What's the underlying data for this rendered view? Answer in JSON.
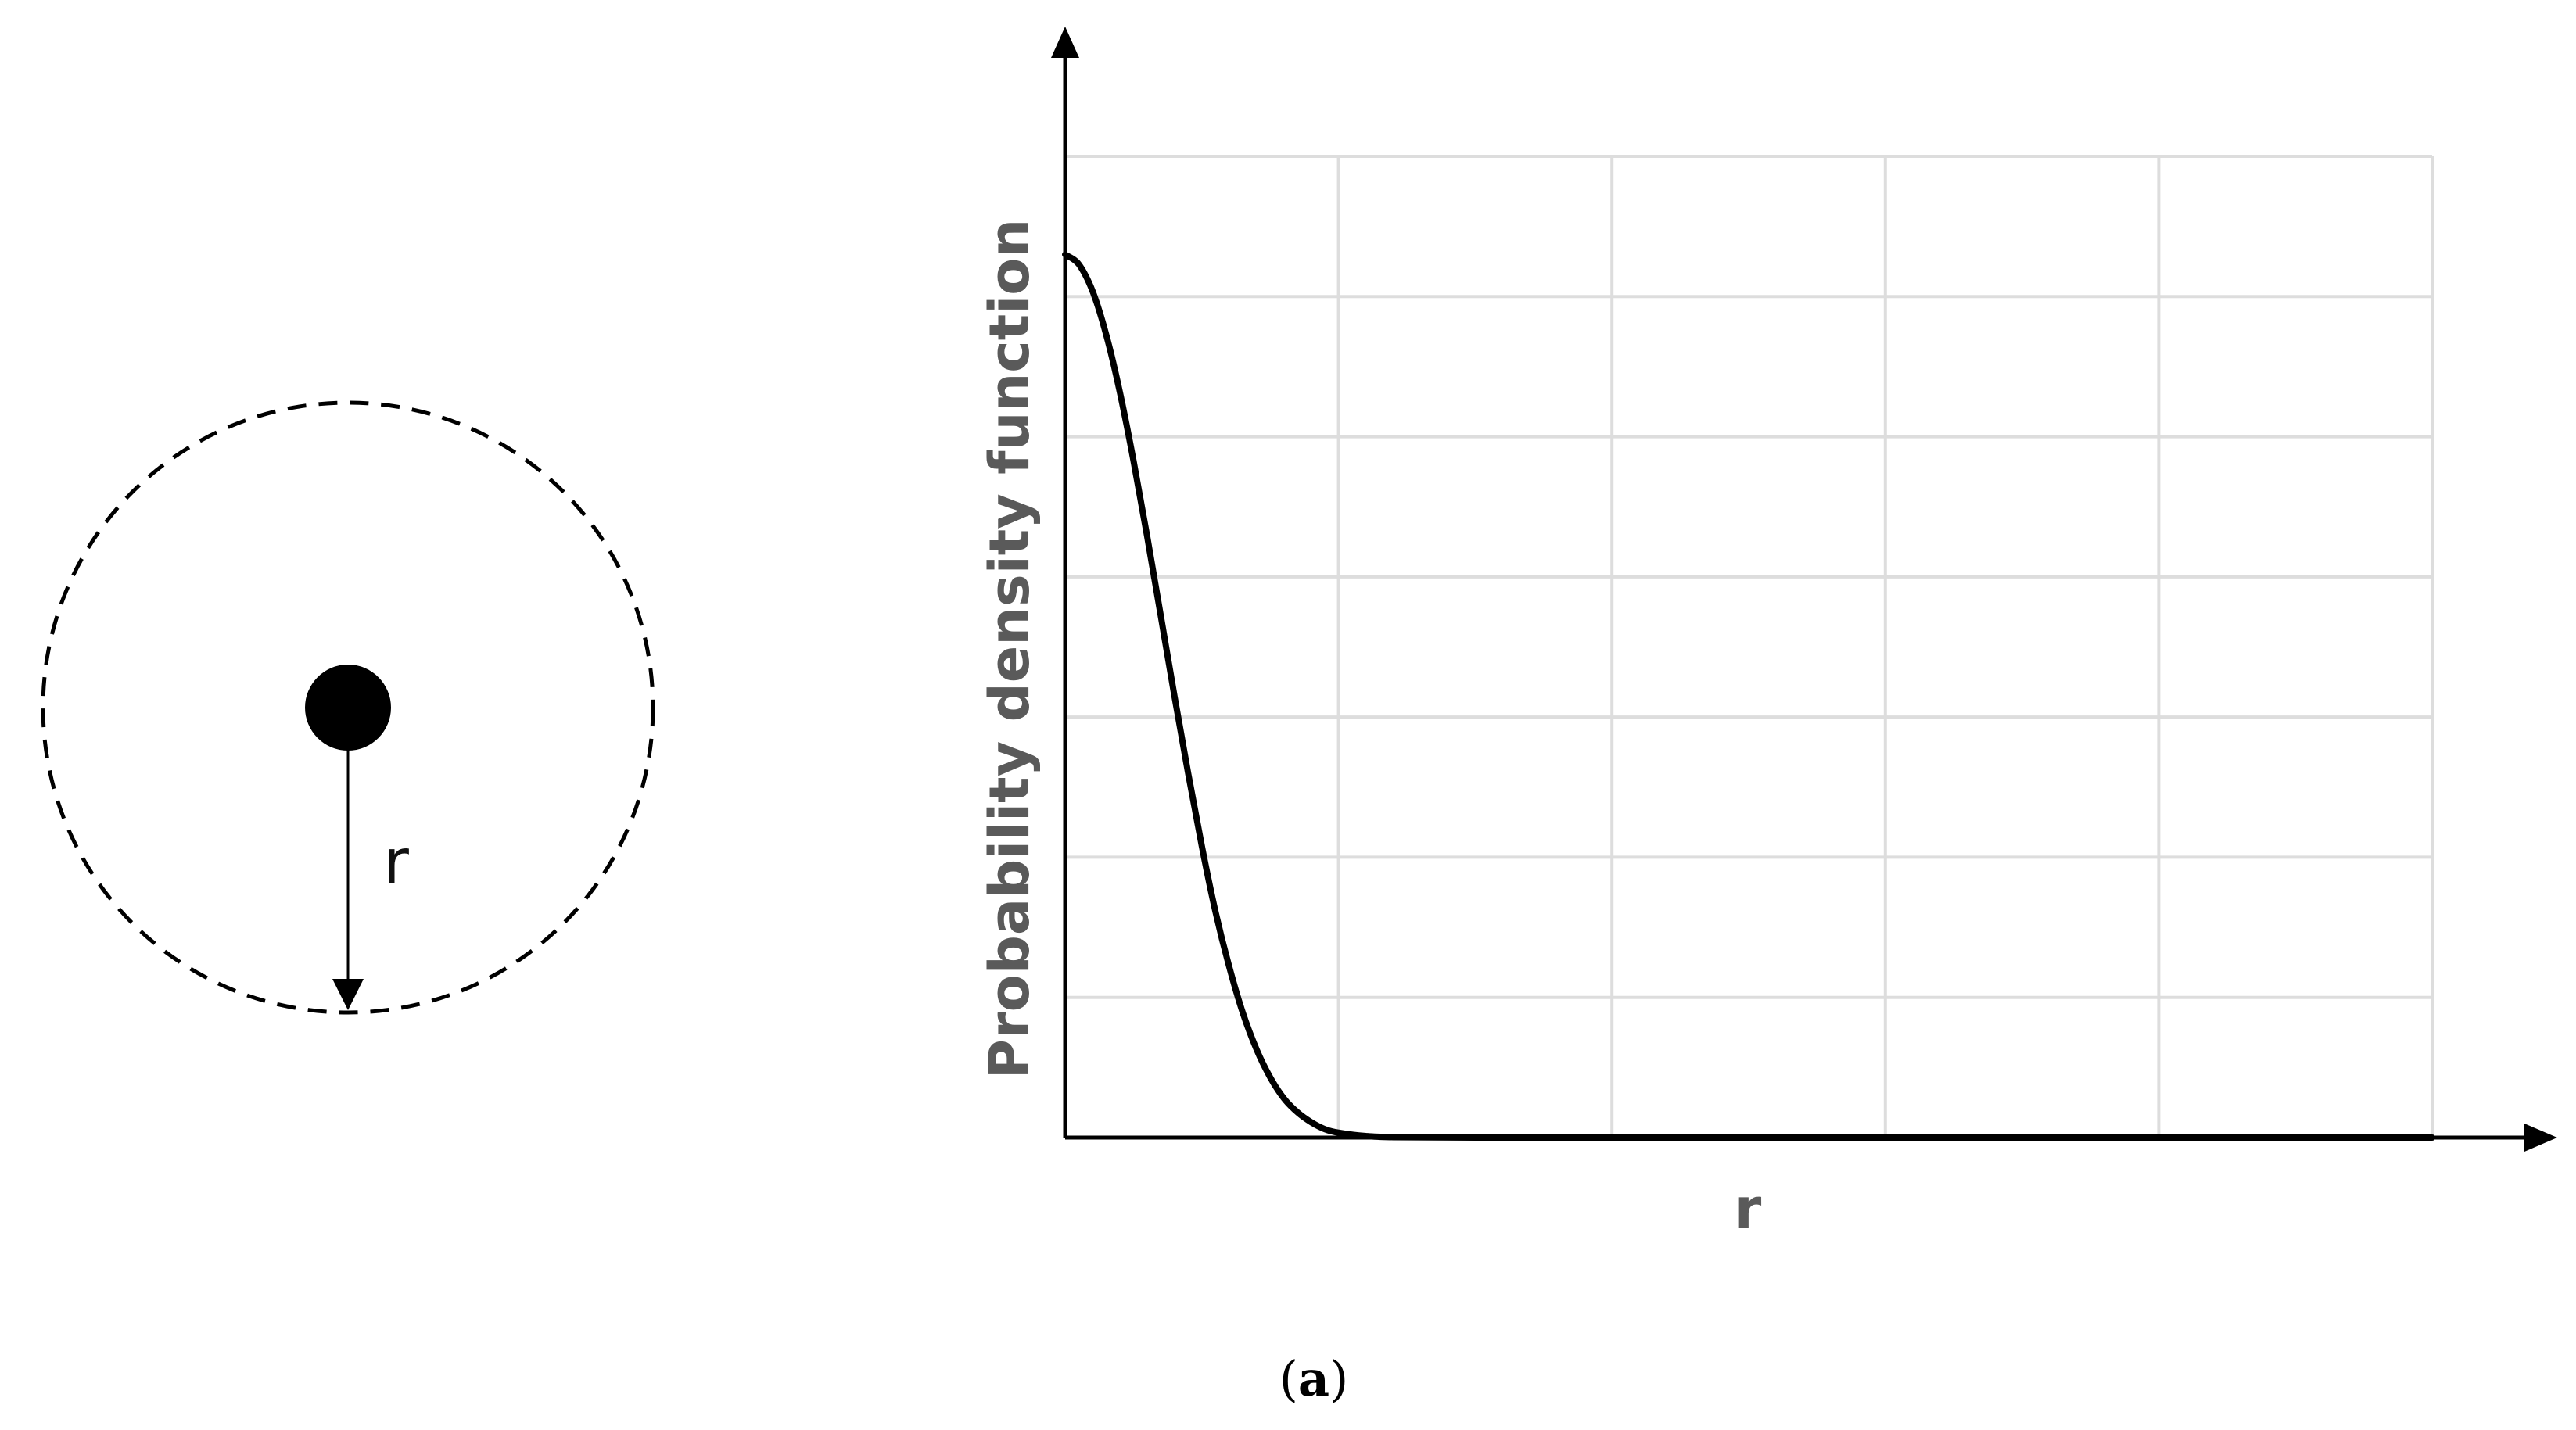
{
  "diagram": {
    "radius_label": "r"
  },
  "chart_data": {
    "type": "line",
    "title": "",
    "xlabel": "r",
    "ylabel": "Probability density function",
    "grid": true,
    "xlim": [
      0,
      5
    ],
    "ylim": [
      0,
      7
    ],
    "series": [
      {
        "x": [
          0,
          0.05,
          0.1,
          0.15,
          0.2,
          0.25,
          0.3,
          0.35,
          0.4,
          0.45,
          0.5,
          0.55,
          0.6,
          0.65,
          0.7,
          0.75,
          0.8,
          0.85,
          0.9,
          0.95,
          1.0,
          1.1,
          1.2,
          1.5,
          2,
          3,
          4,
          5
        ],
        "y": [
          6.3,
          6.23,
          6.04,
          5.73,
          5.32,
          4.83,
          4.29,
          3.72,
          3.15,
          2.6,
          2.08,
          1.61,
          1.22,
          0.89,
          0.63,
          0.43,
          0.28,
          0.18,
          0.11,
          0.06,
          0.035,
          0.011,
          0.003,
          0,
          0,
          0,
          0,
          0
        ]
      }
    ]
  },
  "caption": {
    "open": "(",
    "letter": "a",
    "close": ")"
  }
}
